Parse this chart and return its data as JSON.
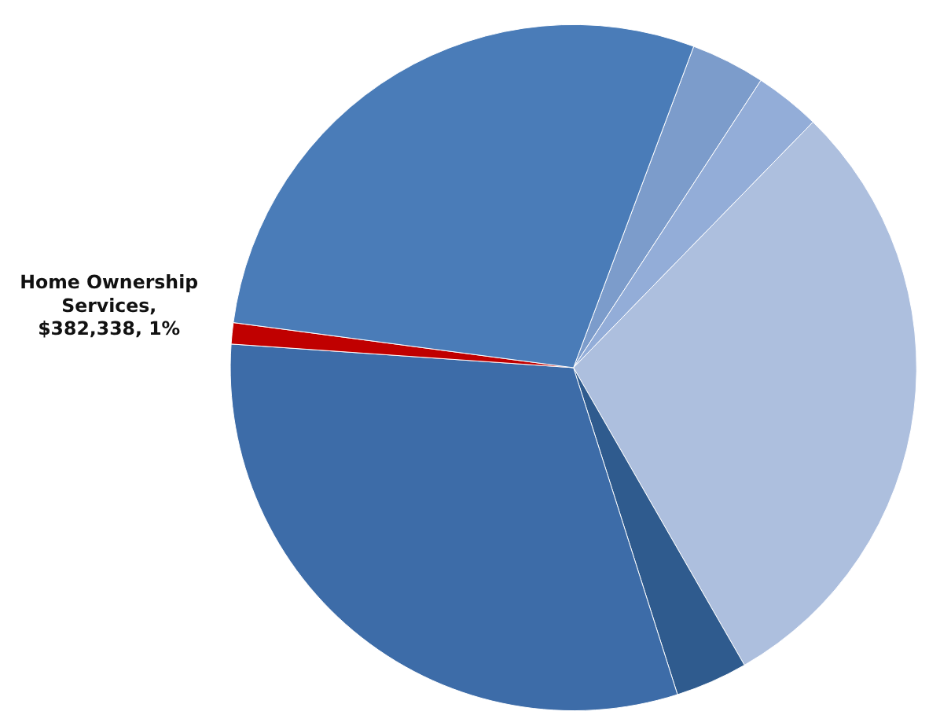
{
  "chart_data": {
    "type": "pie",
    "categories": [
      null,
      null,
      null,
      null,
      null,
      null,
      null
    ],
    "values": [
      3.5,
      3.1,
      29.4,
      3.4,
      31,
      1,
      28.6
    ],
    "colors": [
      "#7c9ccb",
      "#93add8",
      "#adbfde",
      "#2f5b8e",
      "#3d6ca8",
      "#c00000",
      "#4a7cb8"
    ],
    "value_labels": [
      null,
      null,
      null,
      null,
      null,
      "Home Ownership Services, $382,338, 1%",
      null
    ]
  }
}
